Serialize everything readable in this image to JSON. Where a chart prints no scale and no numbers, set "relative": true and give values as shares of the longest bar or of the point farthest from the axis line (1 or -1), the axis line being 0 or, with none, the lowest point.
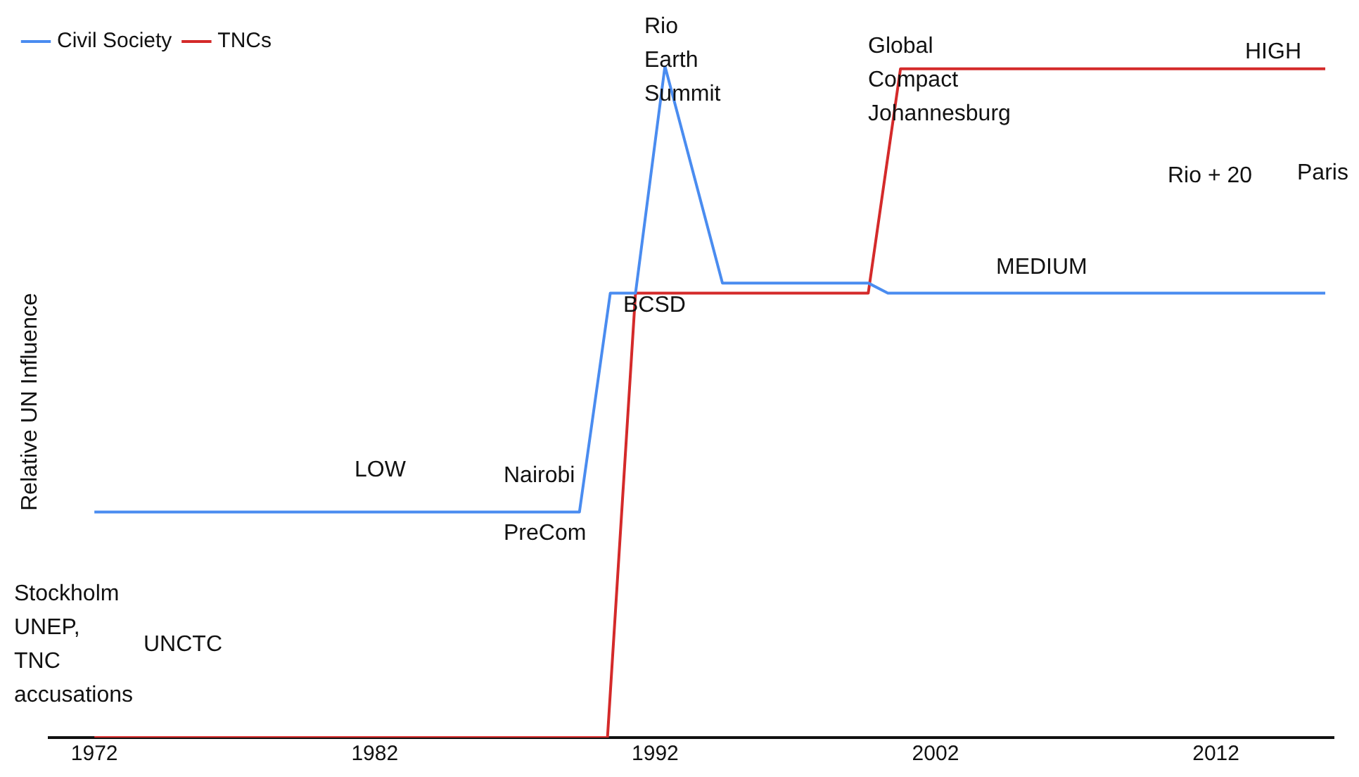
{
  "chart_data": {
    "type": "line",
    "relative": true,
    "ylabel": "Relative UN Influence",
    "xlim": [
      1970.4,
      2016.2
    ],
    "xticks": [
      1972,
      1982,
      1992,
      2002,
      2012
    ],
    "tick_labels": "x",
    "grid": false,
    "legend": "top left",
    "marker": "none",
    "line_style": "solid",
    "series": [
      {
        "name": "Civil Society",
        "color": "#4a8cf0",
        "x": [
          1972,
          1989.3,
          1990.4,
          1991.3,
          1992.35,
          1994.4,
          1999.6,
          2000.3,
          2015.9
        ],
        "values": [
          0.336,
          0.336,
          0.662,
          0.662,
          1.0,
          0.677,
          0.677,
          0.662,
          0.662
        ]
      },
      {
        "name": "TNCs",
        "color": "#d42a2a",
        "x": [
          1972,
          1990.3,
          1991.3,
          1999.6,
          2000.75,
          2015.9
        ],
        "values": [
          0,
          0,
          0.662,
          0.662,
          0.996,
          0.996
        ]
      }
    ],
    "annotations": [
      "Stockholm\nUNEP,\nTNC\naccusations",
      "UNCTC",
      "LOW",
      "Nairobi",
      "PreCom",
      "BCSD",
      "Rio\nEarth\nSummit",
      "Global\nCompact\nJohannesburg",
      "HIGH",
      "Rio + 20",
      "Paris",
      "MEDIUM"
    ]
  }
}
